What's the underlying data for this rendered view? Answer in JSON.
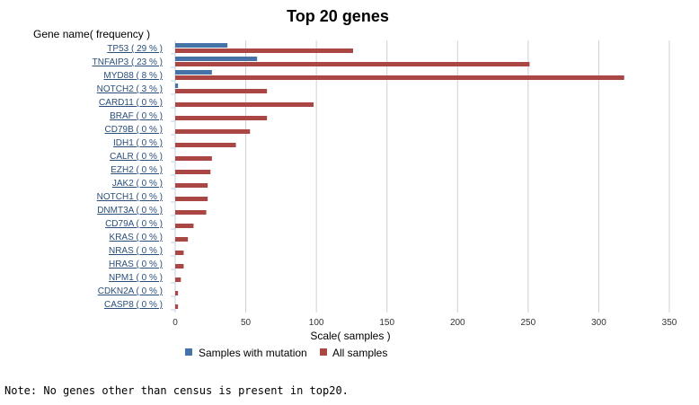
{
  "chart_data": {
    "type": "bar",
    "orientation": "horizontal",
    "title": "Top 20 genes",
    "ylabel": "Gene name( frequency )",
    "xlabel": "Scale( samples )",
    "xlim": [
      0,
      350
    ],
    "xticks": [
      0,
      50,
      100,
      150,
      200,
      250,
      300,
      350
    ],
    "categories": [
      "TP53 ( 29 % )",
      "TNFAIP3 ( 23 % )",
      "MYD88 ( 8 % )",
      "NOTCH2 ( 3 % )",
      "CARD11 ( 0 % )",
      "BRAF ( 0 % )",
      "CD79B ( 0 % )",
      "IDH1 ( 0 % )",
      "CALR ( 0 % )",
      "EZH2 ( 0 % )",
      "JAK2 ( 0 % )",
      "NOTCH1 ( 0 % )",
      "DNMT3A ( 0 % )",
      "CD79A ( 0 % )",
      "KRAS ( 0 % )",
      "NRAS ( 0 % )",
      "HRAS ( 0 % )",
      "NPM1 ( 0 % )",
      "CDKN2A ( 0 % )",
      "CASP8 ( 0 % )"
    ],
    "series": [
      {
        "name": "Samples with mutation",
        "color": "#4572a7",
        "values": [
          37,
          58,
          26,
          2,
          0,
          0,
          0,
          0,
          0,
          0,
          0,
          0,
          0,
          0,
          0,
          0,
          0,
          0,
          0,
          0
        ]
      },
      {
        "name": "All samples",
        "color": "#aa4643",
        "values": [
          126,
          251,
          318,
          65,
          98,
          65,
          53,
          43,
          26,
          25,
          23,
          23,
          22,
          13,
          9,
          6,
          6,
          4,
          2,
          2
        ]
      }
    ],
    "grid": true,
    "legend": "bottom"
  },
  "note": "Note: No genes other than census is present in top20."
}
